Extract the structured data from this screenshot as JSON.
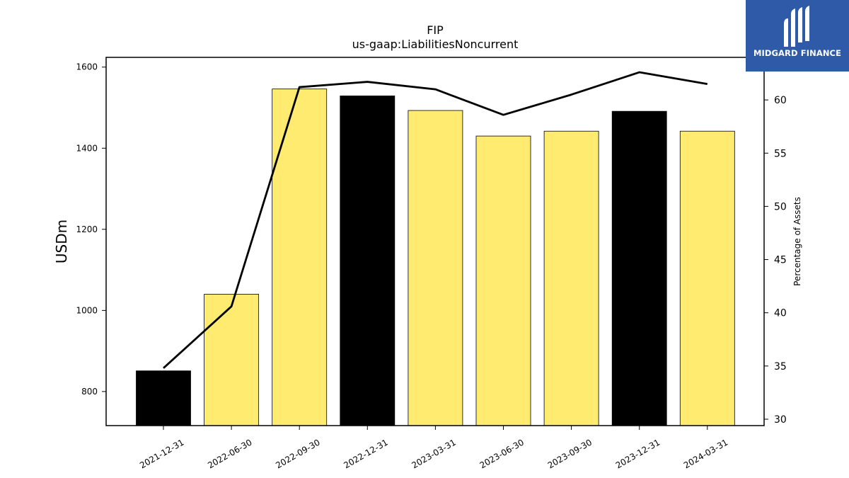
{
  "logo": {
    "text": "MIDGARD FINANCE",
    "icon": "midgard-logo-icon",
    "background": "#2f5aa8"
  },
  "chart_data": {
    "type": "bar",
    "title": "FIP",
    "subtitle": "us-gaap:LiabilitiesNoncurrent",
    "ylabel": "USDm",
    "y2label": "Percentage of Assets",
    "categories": [
      "2021-12-31",
      "2022-06-30",
      "2022-09-30",
      "2022-12-31",
      "2023-03-31",
      "2023-06-30",
      "2023-09-30",
      "2023-12-31",
      "2024-03-31"
    ],
    "series": [
      {
        "type": "bar",
        "axis": "left",
        "values": [
          851,
          1040,
          1546,
          1529,
          1493,
          1430,
          1442,
          1491,
          1442
        ],
        "colors": [
          "#000000",
          "#ffeb70",
          "#ffeb70",
          "#000000",
          "#ffeb70",
          "#ffeb70",
          "#ffeb70",
          "#000000",
          "#ffeb70"
        ]
      },
      {
        "type": "line",
        "axis": "right",
        "color": "#000000",
        "values": [
          34.8,
          40.6,
          61.2,
          61.7,
          61.0,
          58.6,
          60.5,
          62.6,
          61.5
        ]
      }
    ],
    "ylim": [
      716,
      1624
    ],
    "yticks": [
      800,
      1000,
      1200,
      1400,
      1600
    ],
    "y2lim": [
      29.4,
      64.0
    ],
    "y2ticks": [
      30,
      35,
      40,
      45,
      50,
      55,
      60
    ],
    "grid": false
  }
}
